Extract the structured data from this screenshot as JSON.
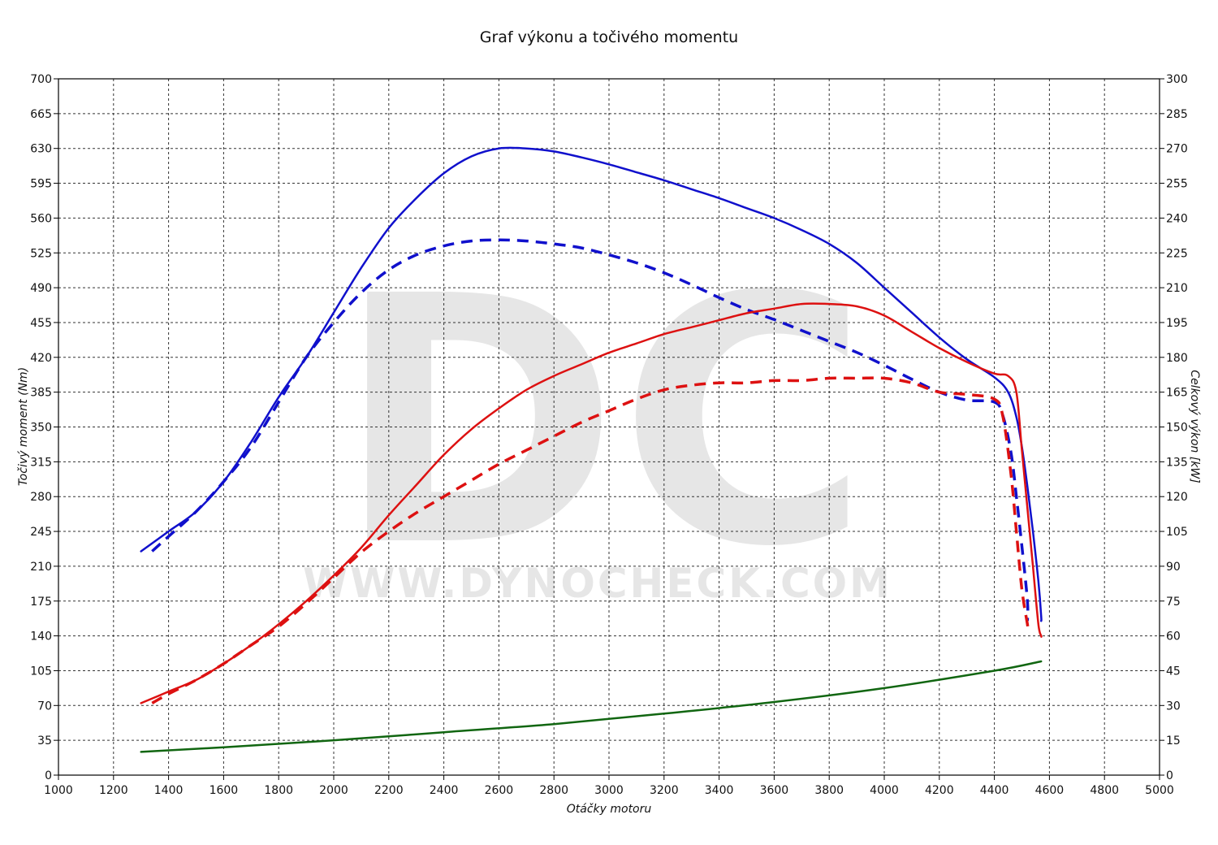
{
  "chart_data": {
    "type": "line",
    "title": "Graf výkonu a točivého momentu",
    "xlabel": "Otáčky motoru",
    "ylabel_left": "Točivý moment (Nm)",
    "ylabel_right": "Celkový výkon [kW]",
    "xlim": [
      1000,
      5000
    ],
    "ylim_left": [
      0,
      700
    ],
    "ylim_right": [
      0,
      300
    ],
    "x_ticks": [
      "1000",
      "1200",
      "1400",
      "1600",
      "1800",
      "2000",
      "2200",
      "2400",
      "2600",
      "2800",
      "3000",
      "3200",
      "3400",
      "3600",
      "3800",
      "4000",
      "4200",
      "4400",
      "4600",
      "4800",
      "5000"
    ],
    "y_ticks_left": [
      "0",
      "35",
      "70",
      "105",
      "140",
      "175",
      "210",
      "245",
      "280",
      "315",
      "350",
      "385",
      "420",
      "455",
      "490",
      "525",
      "560",
      "595",
      "630",
      "665",
      "700"
    ],
    "y_ticks_right": [
      "0",
      "15",
      "30",
      "45",
      "60",
      "75",
      "90",
      "105",
      "120",
      "135",
      "150",
      "165",
      "180",
      "195",
      "210",
      "225",
      "240",
      "255",
      "270",
      "285",
      "300"
    ],
    "grid": true,
    "watermark": {
      "logo": "DC",
      "url": "WWW.DYNOCHECK.COM"
    },
    "series": [
      {
        "axis": "left",
        "color": "#1010cc",
        "style": "solid",
        "width": 2.5,
        "x": [
          1300,
          1400,
          1500,
          1600,
          1700,
          1800,
          1900,
          2000,
          2100,
          2200,
          2300,
          2400,
          2500,
          2600,
          2700,
          2800,
          2900,
          3000,
          3100,
          3200,
          3300,
          3400,
          3500,
          3600,
          3700,
          3800,
          3900,
          4000,
          4100,
          4200,
          4300,
          4400,
          4450,
          4480,
          4500,
          4520,
          4540,
          4560,
          4570,
          4570
        ],
        "y": [
          225,
          245,
          265,
          295,
          335,
          380,
          420,
          465,
          510,
          550,
          580,
          605,
          622,
          630,
          630,
          627,
          621,
          614,
          606,
          598,
          589,
          580,
          570,
          560,
          548,
          534,
          515,
          490,
          465,
          440,
          418,
          400,
          385,
          360,
          330,
          290,
          245,
          195,
          160,
          155
        ]
      },
      {
        "axis": "left",
        "color": "#1010cc",
        "style": "dashed",
        "width": 3.5,
        "x": [
          1340,
          1400,
          1500,
          1600,
          1700,
          1800,
          1900,
          2000,
          2100,
          2200,
          2300,
          2400,
          2500,
          2600,
          2700,
          2800,
          2900,
          3000,
          3100,
          3200,
          3300,
          3400,
          3500,
          3600,
          3700,
          3800,
          3900,
          4000,
          4100,
          4200,
          4300,
          4400,
          4430,
          4460,
          4480,
          4500,
          4520,
          4520
        ],
        "y": [
          225,
          240,
          265,
          295,
          330,
          375,
          420,
          455,
          485,
          508,
          523,
          532,
          537,
          538,
          537,
          534,
          530,
          523,
          515,
          505,
          493,
          480,
          468,
          458,
          447,
          436,
          425,
          412,
          398,
          385,
          377,
          375,
          362,
          325,
          280,
          230,
          175,
          155
        ]
      },
      {
        "axis": "right",
        "color": "#dd1111",
        "style": "solid",
        "width": 2.5,
        "x": [
          1300,
          1400,
          1500,
          1600,
          1700,
          1800,
          1900,
          2000,
          2100,
          2200,
          2300,
          2400,
          2500,
          2600,
          2700,
          2800,
          2900,
          3000,
          3100,
          3200,
          3300,
          3400,
          3500,
          3600,
          3700,
          3800,
          3900,
          4000,
          4100,
          4200,
          4300,
          4400,
          4450,
          4480,
          4500,
          4520,
          4540,
          4560,
          4570,
          4570
        ],
        "y": [
          31,
          36,
          41,
          48,
          56,
          65,
          75,
          86,
          98,
          112,
          125,
          138,
          149,
          158,
          166,
          172,
          177,
          182,
          186,
          190,
          193,
          196,
          199,
          201,
          203,
          203,
          202,
          198,
          191,
          184,
          178,
          173,
          172,
          165,
          140,
          115,
          90,
          65,
          60,
          60
        ]
      },
      {
        "axis": "right",
        "color": "#dd1111",
        "style": "dashed",
        "width": 3.5,
        "x": [
          1340,
          1400,
          1500,
          1600,
          1700,
          1800,
          1900,
          2000,
          2100,
          2200,
          2300,
          2400,
          2500,
          2600,
          2700,
          2800,
          2900,
          3000,
          3100,
          3200,
          3300,
          3400,
          3500,
          3600,
          3700,
          3800,
          3900,
          4000,
          4100,
          4200,
          4300,
          4400,
          4430,
          4460,
          4480,
          4500,
          4520,
          4520
        ],
        "y": [
          31,
          35,
          41,
          48,
          56,
          64,
          74,
          85,
          96,
          105,
          113,
          120,
          127,
          134,
          140,
          146,
          152,
          157,
          162,
          166,
          168,
          169,
          169,
          170,
          170,
          171,
          171,
          171,
          169,
          165,
          164,
          162,
          155,
          130,
          105,
          80,
          65,
          65
        ]
      },
      {
        "axis": "right",
        "color": "#116611",
        "style": "solid",
        "width": 2.5,
        "x": [
          1300,
          1600,
          2000,
          2400,
          2800,
          3200,
          3600,
          4000,
          4400,
          4570
        ],
        "y": [
          10,
          12,
          15,
          18.5,
          22,
          26.5,
          31.5,
          37.5,
          45,
          49
        ]
      }
    ]
  }
}
